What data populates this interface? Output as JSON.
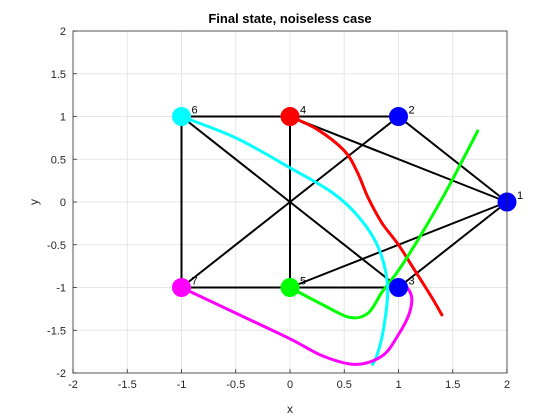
{
  "chart_data": {
    "type": "scatter",
    "title": "Final state, noiseless case",
    "xlabel": "x",
    "ylabel": "y",
    "xlim": [
      -2,
      2
    ],
    "ylim": [
      -2,
      2
    ],
    "xticks": [
      "-2",
      "-1.5",
      "-1",
      "-0.5",
      "0",
      "0.5",
      "1",
      "1.5",
      "2"
    ],
    "yticks": [
      "-2",
      "-1.5",
      "-1",
      "-0.5",
      "0",
      "0.5",
      "1",
      "1.5",
      "2"
    ],
    "grid": true,
    "nodes": [
      {
        "label": "1",
        "x": 2,
        "y": 0,
        "color": "#0000ff"
      },
      {
        "label": "2",
        "x": 1,
        "y": 1,
        "color": "#0000ff"
      },
      {
        "label": "3",
        "x": 1,
        "y": -1,
        "color": "#0000ff"
      },
      {
        "label": "4",
        "x": 0,
        "y": 1,
        "color": "#ff0000"
      },
      {
        "label": "5",
        "x": 0,
        "y": -1,
        "color": "#00ff00"
      },
      {
        "label": "6",
        "x": -1,
        "y": 1,
        "color": "#00ffff"
      },
      {
        "label": "7",
        "x": -1,
        "y": -1,
        "color": "#ff00ff"
      }
    ],
    "edges": [
      [
        "6",
        "4"
      ],
      [
        "4",
        "2"
      ],
      [
        "6",
        "7"
      ],
      [
        "7",
        "5"
      ],
      [
        "5",
        "3"
      ],
      [
        "2",
        "1"
      ],
      [
        "4",
        "1"
      ],
      [
        "5",
        "1"
      ],
      [
        "3",
        "1"
      ],
      [
        "4",
        "5"
      ],
      [
        "6",
        "3"
      ],
      [
        "7",
        "2"
      ]
    ],
    "series": [
      {
        "color": "#ff0000",
        "x": [
          0,
          0.25,
          0.5,
          0.62,
          0.72,
          0.85,
          1.0,
          1.15,
          1.3,
          1.4
        ],
        "y": [
          1,
          0.85,
          0.6,
          0.35,
          0.05,
          -0.25,
          -0.5,
          -0.8,
          -1.1,
          -1.32
        ]
      },
      {
        "color": "#00ff00",
        "x": [
          0,
          0.3,
          0.55,
          0.72,
          0.85,
          1.0,
          1.2,
          1.45,
          1.73
        ],
        "y": [
          -1,
          -1.2,
          -1.35,
          -1.3,
          -1.05,
          -0.8,
          -0.4,
          0.15,
          0.83
        ]
      },
      {
        "color": "#00ffff",
        "x": [
          -1,
          -0.5,
          0,
          0.4,
          0.65,
          0.82,
          0.9,
          0.86,
          0.8,
          0.76
        ],
        "y": [
          1,
          0.75,
          0.4,
          0.1,
          -0.2,
          -0.55,
          -1.0,
          -1.5,
          -1.8,
          -1.9
        ]
      },
      {
        "color": "#ff00ff",
        "x": [
          -1,
          -0.5,
          0,
          0.3,
          0.6,
          0.85,
          1.0,
          1.1,
          1.12,
          1.05,
          1.0
        ],
        "y": [
          -1,
          -1.3,
          -1.6,
          -1.8,
          -1.9,
          -1.8,
          -1.55,
          -1.3,
          -1.1,
          -0.95,
          -0.92
        ]
      }
    ]
  }
}
